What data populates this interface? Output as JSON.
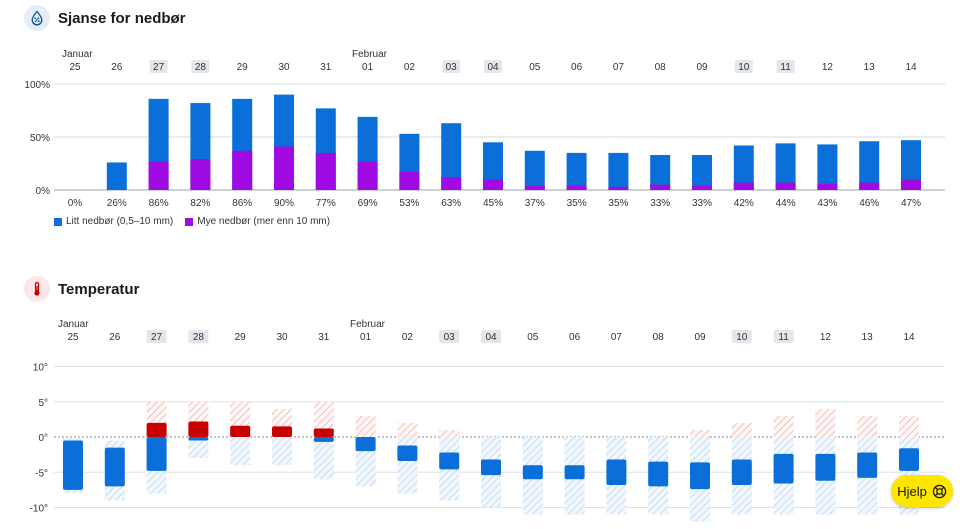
{
  "precip_section": {
    "title": "Sjanse for nedbør",
    "icon": "raindrop-percent-icon"
  },
  "temp_section": {
    "title": "Temperatur",
    "icon": "thermometer-icon"
  },
  "month_labels": {
    "first": "Januar",
    "second": "Februar"
  },
  "days": [
    "25",
    "26",
    "27",
    "28",
    "29",
    "30",
    "31",
    "01",
    "02",
    "03",
    "04",
    "05",
    "06",
    "07",
    "08",
    "09",
    "10",
    "11",
    "12",
    "13",
    "14"
  ],
  "weekend_flags": [
    false,
    false,
    true,
    true,
    false,
    false,
    false,
    false,
    false,
    true,
    true,
    false,
    false,
    false,
    false,
    false,
    true,
    true,
    false,
    false,
    false
  ],
  "legend": {
    "light": "Litt nedbør (0,5–10 mm)",
    "heavy": "Mye nedbør (mer enn 10 mm)"
  },
  "help_button": {
    "label": "Hjelp",
    "icon": "lifebuoy-icon"
  },
  "colors": {
    "light_rain": "#0a6fd8",
    "heavy_rain": "#a10be3",
    "warm": "#c80000",
    "cold": "#0a6fd8",
    "warm_hatch": "#e8a0a0",
    "cold_hatch": "#a9cdee",
    "help_bg": "#ffe600"
  },
  "chart_data": [
    {
      "type": "bar",
      "title": "Sjanse for nedbør",
      "categories": [
        "25",
        "26",
        "27",
        "28",
        "29",
        "30",
        "31",
        "01",
        "02",
        "03",
        "04",
        "05",
        "06",
        "07",
        "08",
        "09",
        "10",
        "11",
        "12",
        "13",
        "14"
      ],
      "ylim": [
        0,
        100
      ],
      "yticks": [
        "0%",
        "50%",
        "100%"
      ],
      "value_labels": [
        "0%",
        "26%",
        "86%",
        "82%",
        "86%",
        "90%",
        "77%",
        "69%",
        "53%",
        "63%",
        "45%",
        "37%",
        "35%",
        "35%",
        "33%",
        "33%",
        "42%",
        "44%",
        "43%",
        "46%",
        "47%"
      ],
      "series": [
        {
          "name": "Litt nedbør (0,5–10 mm)",
          "values": [
            0,
            26,
            86,
            82,
            86,
            90,
            77,
            69,
            53,
            63,
            45,
            37,
            35,
            35,
            33,
            33,
            42,
            44,
            43,
            46,
            47
          ]
        },
        {
          "name": "Mye nedbør (mer enn 10 mm)",
          "values": [
            0,
            0,
            27,
            29,
            37,
            41,
            35,
            27,
            17,
            12,
            10,
            4,
            4,
            3,
            5,
            4,
            7,
            7,
            6,
            7,
            10
          ]
        }
      ],
      "legend_position": "bottom-left",
      "grid": true
    },
    {
      "type": "bar",
      "title": "Temperatur",
      "categories": [
        "25",
        "26",
        "27",
        "28",
        "29",
        "30",
        "31",
        "01",
        "02",
        "03",
        "04",
        "05",
        "06",
        "07",
        "08",
        "09",
        "10",
        "11",
        "12",
        "13",
        "14"
      ],
      "ylim": [
        -10,
        10
      ],
      "yticks": [
        "-10°",
        "-5°",
        "0°",
        "5°",
        "10°"
      ],
      "likely_range": [
        [
          -7.5,
          -0.5
        ],
        [
          -7,
          -1.5
        ],
        [
          -4.8,
          2
        ],
        [
          -0.5,
          2.2
        ],
        [
          0,
          1.6
        ],
        [
          0,
          1.5
        ],
        [
          -0.7,
          1.2
        ],
        [
          -2,
          0
        ],
        [
          -3.4,
          -1.2
        ],
        [
          -4.6,
          -2.2
        ],
        [
          -5.4,
          -3.2
        ],
        [
          -6,
          -4
        ],
        [
          -6,
          -4
        ],
        [
          -6.8,
          -3.2
        ],
        [
          -7,
          -3.5
        ],
        [
          -7.4,
          -3.6
        ],
        [
          -6.8,
          -3.2
        ],
        [
          -6.6,
          -2.4
        ],
        [
          -6.2,
          -2.4
        ],
        [
          -5.8,
          -2.2
        ],
        [
          -4.8,
          -1.6
        ]
      ],
      "possible_range": [
        [
          -8,
          -0.2
        ],
        [
          -9,
          -0.5
        ],
        [
          -8,
          5
        ],
        [
          -3,
          5
        ],
        [
          -4,
          5
        ],
        [
          -4,
          4
        ],
        [
          -6,
          5
        ],
        [
          -7,
          3
        ],
        [
          -8,
          2
        ],
        [
          -9,
          1
        ],
        [
          -10,
          0
        ],
        [
          -11,
          0
        ],
        [
          -11,
          0
        ],
        [
          -11,
          0
        ],
        [
          -11,
          0
        ],
        [
          -12,
          1
        ],
        [
          -11,
          2
        ],
        [
          -11,
          3
        ],
        [
          -11,
          4
        ],
        [
          -11,
          3
        ],
        [
          -11,
          3
        ]
      ]
    }
  ]
}
